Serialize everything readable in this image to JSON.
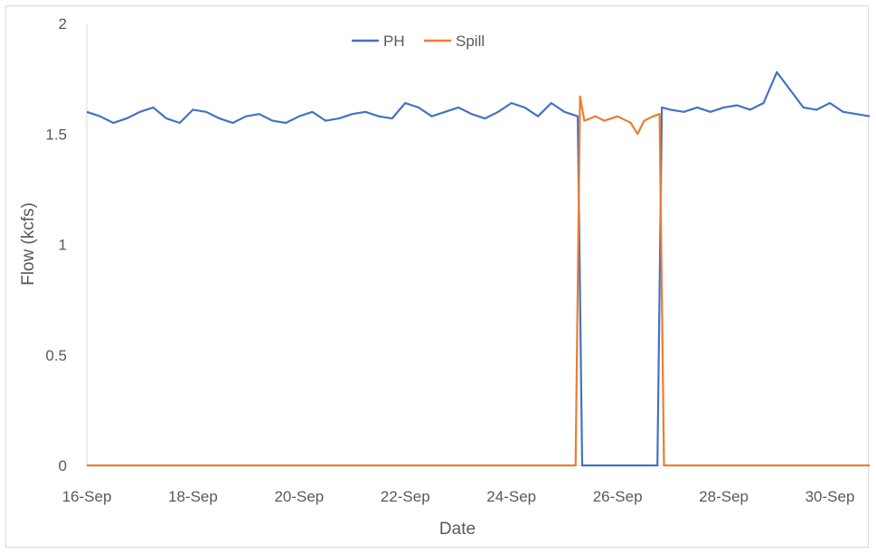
{
  "chart_data": {
    "type": "line",
    "title": "",
    "xlabel": "Date",
    "ylabel": "Flow (kcfs)",
    "ylim": [
      0,
      2
    ],
    "xlim": [
      "16-Sep",
      "30-Sep"
    ],
    "grid": false,
    "legend": "top-center",
    "x_tick_labels": [
      "16-Sep",
      "18-Sep",
      "20-Sep",
      "22-Sep",
      "24-Sep",
      "26-Sep",
      "28-Sep",
      "30-Sep"
    ],
    "y_tick_labels": [
      "0",
      "0.5",
      "1",
      "1.5",
      "2"
    ],
    "series": [
      {
        "name": "PH",
        "color": "#4472c4",
        "points": [
          [
            "16-Sep 00:00",
            1.6
          ],
          [
            "16-Sep 06:00",
            1.58
          ],
          [
            "16-Sep 12:00",
            1.55
          ],
          [
            "16-Sep 18:00",
            1.57
          ],
          [
            "17-Sep 00:00",
            1.6
          ],
          [
            "17-Sep 06:00",
            1.62
          ],
          [
            "17-Sep 12:00",
            1.57
          ],
          [
            "17-Sep 18:00",
            1.55
          ],
          [
            "18-Sep 00:00",
            1.61
          ],
          [
            "18-Sep 06:00",
            1.6
          ],
          [
            "18-Sep 12:00",
            1.57
          ],
          [
            "18-Sep 18:00",
            1.55
          ],
          [
            "19-Sep 00:00",
            1.58
          ],
          [
            "19-Sep 06:00",
            1.59
          ],
          [
            "19-Sep 12:00",
            1.56
          ],
          [
            "19-Sep 18:00",
            1.55
          ],
          [
            "20-Sep 00:00",
            1.58
          ],
          [
            "20-Sep 06:00",
            1.6
          ],
          [
            "20-Sep 12:00",
            1.56
          ],
          [
            "20-Sep 18:00",
            1.57
          ],
          [
            "21-Sep 00:00",
            1.59
          ],
          [
            "21-Sep 06:00",
            1.6
          ],
          [
            "21-Sep 12:00",
            1.58
          ],
          [
            "21-Sep 18:00",
            1.57
          ],
          [
            "22-Sep 00:00",
            1.64
          ],
          [
            "22-Sep 06:00",
            1.62
          ],
          [
            "22-Sep 12:00",
            1.58
          ],
          [
            "22-Sep 18:00",
            1.6
          ],
          [
            "23-Sep 00:00",
            1.62
          ],
          [
            "23-Sep 06:00",
            1.59
          ],
          [
            "23-Sep 12:00",
            1.57
          ],
          [
            "23-Sep 18:00",
            1.6
          ],
          [
            "24-Sep 00:00",
            1.64
          ],
          [
            "24-Sep 06:00",
            1.62
          ],
          [
            "24-Sep 12:00",
            1.58
          ],
          [
            "24-Sep 18:00",
            1.64
          ],
          [
            "25-Sep 00:00",
            1.6
          ],
          [
            "25-Sep 06:00",
            1.58
          ],
          [
            "25-Sep 08:00",
            0
          ],
          [
            "26-Sep 18:00",
            0
          ],
          [
            "26-Sep 20:00",
            1.62
          ],
          [
            "27-Sep 00:00",
            1.61
          ],
          [
            "27-Sep 06:00",
            1.6
          ],
          [
            "27-Sep 12:00",
            1.62
          ],
          [
            "27-Sep 18:00",
            1.6
          ],
          [
            "28-Sep 00:00",
            1.62
          ],
          [
            "28-Sep 06:00",
            1.63
          ],
          [
            "28-Sep 12:00",
            1.61
          ],
          [
            "28-Sep 18:00",
            1.64
          ],
          [
            "29-Sep 00:00",
            1.78
          ],
          [
            "29-Sep 06:00",
            1.7
          ],
          [
            "29-Sep 12:00",
            1.62
          ],
          [
            "29-Sep 18:00",
            1.61
          ],
          [
            "30-Sep 00:00",
            1.64
          ],
          [
            "30-Sep 06:00",
            1.6
          ],
          [
            "30-Sep 12:00",
            1.59
          ],
          [
            "30-Sep 18:00",
            1.58
          ]
        ]
      },
      {
        "name": "Spill",
        "color": "#ed7d31",
        "points": [
          [
            "16-Sep 00:00",
            0
          ],
          [
            "25-Sep 05:00",
            0
          ],
          [
            "25-Sep 07:00",
            1.67
          ],
          [
            "25-Sep 09:00",
            1.56
          ],
          [
            "25-Sep 14:00",
            1.58
          ],
          [
            "25-Sep 18:00",
            1.56
          ],
          [
            "26-Sep 00:00",
            1.58
          ],
          [
            "26-Sep 06:00",
            1.55
          ],
          [
            "26-Sep 09:00",
            1.5
          ],
          [
            "26-Sep 12:00",
            1.56
          ],
          [
            "26-Sep 16:00",
            1.58
          ],
          [
            "26-Sep 19:00",
            1.59
          ],
          [
            "26-Sep 21:00",
            0
          ],
          [
            "30-Sep 18:00",
            0
          ]
        ]
      }
    ]
  }
}
